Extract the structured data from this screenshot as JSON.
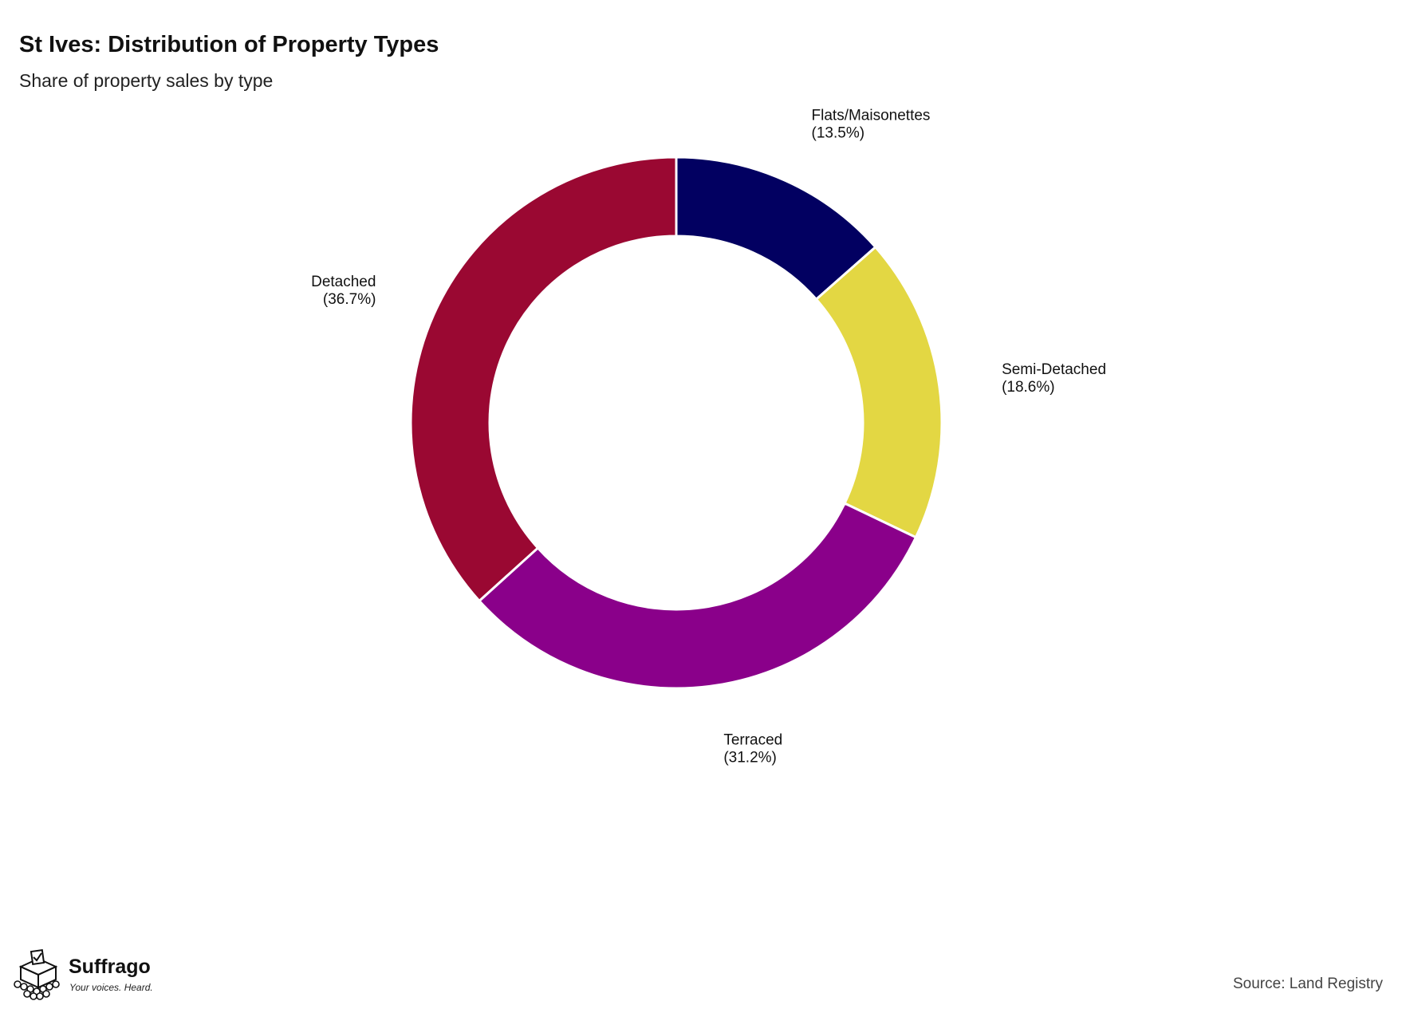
{
  "header": {
    "title": "St Ives: Distribution of Property Types",
    "subtitle": "Share of property sales by type"
  },
  "chart_data": {
    "type": "pie",
    "variant": "donut",
    "title": "St Ives: Distribution of Property Types",
    "subtitle": "Share of property sales by type",
    "slices": [
      {
        "label": "Flats/Maisonettes",
        "value": 13.5,
        "display": "(13.5%)",
        "color": "#020061"
      },
      {
        "label": "Semi-Detached",
        "value": 18.6,
        "display": "(18.6%)",
        "color": "#e3d743"
      },
      {
        "label": "Terraced",
        "value": 31.2,
        "display": "(31.2%)",
        "color": "#8a008a"
      },
      {
        "label": "Detached",
        "value": 36.7,
        "display": "(36.7%)",
        "color": "#9a0832"
      }
    ],
    "start_angle": "top",
    "direction": "clockwise",
    "legend": "none"
  },
  "branding": {
    "name": "Suffrago",
    "tagline": "Your voices. Heard.",
    "icon": "ballot-box-icon"
  },
  "footer": {
    "source": "Source: Land Registry"
  }
}
